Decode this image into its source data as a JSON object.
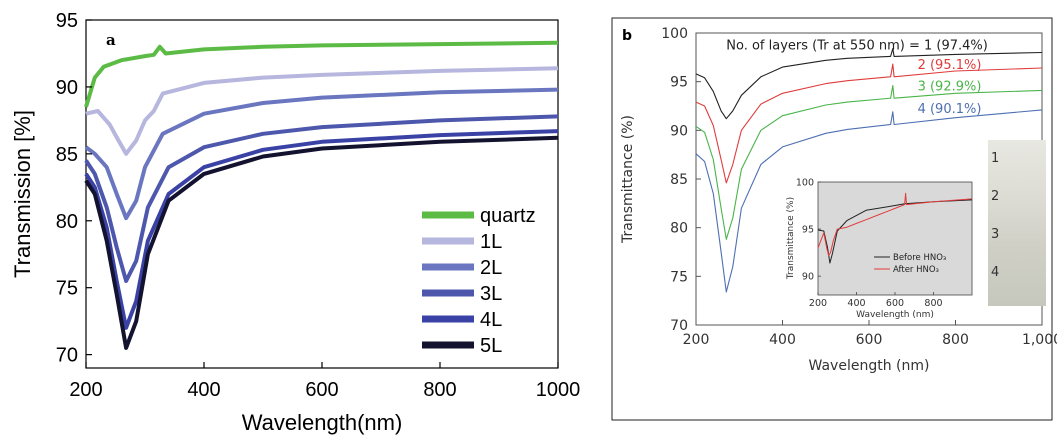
{
  "colors": {
    "quartz": "#5cbb45",
    "1L": "#b6b6de",
    "2L": "#6a76c0",
    "3L": "#4d58ad",
    "4L": "#3a42a6",
    "5L": "#13122f",
    "b1": "#222222",
    "b2": "#e03c3c",
    "b3": "#49b449",
    "b4": "#4d6fb2",
    "inset_bg": "#d9d9d9"
  },
  "chart_data": [
    {
      "type": "line",
      "panel_label": "a",
      "xlabel": "Wavelength(nm)",
      "ylabel": "Transmission [%]",
      "xlim": [
        200,
        1000
      ],
      "ylim": [
        69,
        95
      ],
      "xticks": [
        "200",
        "400",
        "600",
        "800",
        "1000"
      ],
      "xtick_values": [
        200,
        400,
        600,
        800,
        1000
      ],
      "yticks": [
        "70",
        "75",
        "80",
        "85",
        "90",
        "95"
      ],
      "ytick_values": [
        70,
        75,
        80,
        85,
        90,
        95
      ],
      "legend_position": "bottom-right",
      "series": [
        {
          "name": "quartz",
          "color_key": "quartz",
          "points": [
            [
              200,
              88.5
            ],
            [
              215,
              90.7
            ],
            [
              230,
              91.5
            ],
            [
              260,
              92.0
            ],
            [
              300,
              92.3
            ],
            [
              315,
              92.4
            ],
            [
              325,
              93.0
            ],
            [
              335,
              92.5
            ],
            [
              400,
              92.8
            ],
            [
              500,
              93.0
            ],
            [
              600,
              93.1
            ],
            [
              800,
              93.2
            ],
            [
              1000,
              93.3
            ]
          ]
        },
        {
          "name": "1L",
          "color_key": "1L",
          "points": [
            [
              200,
              88.0
            ],
            [
              220,
              88.2
            ],
            [
              240,
              87.2
            ],
            [
              255,
              86.0
            ],
            [
              268,
              85.0
            ],
            [
              285,
              86.0
            ],
            [
              300,
              87.5
            ],
            [
              315,
              88.2
            ],
            [
              330,
              89.5
            ],
            [
              400,
              90.3
            ],
            [
              500,
              90.7
            ],
            [
              600,
              90.9
            ],
            [
              800,
              91.2
            ],
            [
              1000,
              91.4
            ]
          ]
        },
        {
          "name": "2L",
          "color_key": "2L",
          "points": [
            [
              200,
              85.5
            ],
            [
              215,
              85.0
            ],
            [
              235,
              84.0
            ],
            [
              252,
              82.0
            ],
            [
              268,
              80.2
            ],
            [
              285,
              81.5
            ],
            [
              300,
              84.0
            ],
            [
              330,
              86.5
            ],
            [
              400,
              88.0
            ],
            [
              500,
              88.8
            ],
            [
              600,
              89.2
            ],
            [
              800,
              89.6
            ],
            [
              1000,
              89.8
            ]
          ]
        },
        {
          "name": "3L",
          "color_key": "3L",
          "points": [
            [
              200,
              84.5
            ],
            [
              215,
              83.5
            ],
            [
              235,
              81.0
            ],
            [
              252,
              78.0
            ],
            [
              268,
              75.5
            ],
            [
              285,
              77.0
            ],
            [
              305,
              81.0
            ],
            [
              340,
              84.0
            ],
            [
              400,
              85.5
            ],
            [
              500,
              86.5
            ],
            [
              600,
              87.0
            ],
            [
              800,
              87.5
            ],
            [
              1000,
              87.8
            ]
          ]
        },
        {
          "name": "4L",
          "color_key": "4L",
          "points": [
            [
              200,
              83.5
            ],
            [
              215,
              82.5
            ],
            [
              235,
              79.5
            ],
            [
              252,
              75.5
            ],
            [
              268,
              72.0
            ],
            [
              285,
              74.0
            ],
            [
              305,
              78.5
            ],
            [
              340,
              82.0
            ],
            [
              400,
              84.0
            ],
            [
              500,
              85.3
            ],
            [
              600,
              85.9
            ],
            [
              800,
              86.4
            ],
            [
              1000,
              86.7
            ]
          ]
        },
        {
          "name": "5L",
          "color_key": "5L",
          "points": [
            [
              200,
              83.0
            ],
            [
              215,
              82.0
            ],
            [
              235,
              78.5
            ],
            [
              252,
              74.5
            ],
            [
              268,
              70.5
            ],
            [
              285,
              72.5
            ],
            [
              305,
              77.5
            ],
            [
              340,
              81.5
            ],
            [
              400,
              83.5
            ],
            [
              500,
              84.8
            ],
            [
              600,
              85.4
            ],
            [
              800,
              85.9
            ],
            [
              1000,
              86.2
            ]
          ]
        }
      ]
    },
    {
      "type": "line",
      "panel_label": "b",
      "xlabel": "Wavelength (nm)",
      "ylabel": "Transmittance (%)",
      "xlim": [
        200,
        1000
      ],
      "ylim": [
        70,
        100
      ],
      "xticks": [
        "200",
        "400",
        "600",
        "800",
        "1,000"
      ],
      "xtick_values": [
        200,
        400,
        600,
        800,
        1000
      ],
      "yticks": [
        "70",
        "75",
        "80",
        "85",
        "90",
        "95",
        "100"
      ],
      "ytick_values": [
        70,
        75,
        80,
        85,
        90,
        95,
        100
      ],
      "annotations": [
        {
          "text": "No. of layers (Tr at 550 nm) = 1 (97.4%)",
          "color_key": "b1",
          "x": 270,
          "y": 98.3
        },
        {
          "text": "2 (95.1%)",
          "color_key": "b2",
          "x": 860,
          "y": 96.3
        },
        {
          "text": "3 (92.9%)",
          "color_key": "b3",
          "x": 860,
          "y": 94.1
        },
        {
          "text": "4 (90.1%)",
          "color_key": "b4",
          "x": 860,
          "y": 91.8
        }
      ],
      "series": [
        {
          "name": "1",
          "color_key": "b1",
          "points": [
            [
              200,
              95.8
            ],
            [
              220,
              95.4
            ],
            [
              240,
              94.0
            ],
            [
              258,
              92.0
            ],
            [
              270,
              91.2
            ],
            [
              285,
              92.0
            ],
            [
              305,
              93.6
            ],
            [
              350,
              95.5
            ],
            [
              400,
              96.5
            ],
            [
              500,
              97.2
            ],
            [
              550,
              97.4
            ],
            [
              650,
              97.6
            ],
            [
              655,
              98.4
            ],
            [
              658,
              97.6
            ],
            [
              800,
              97.8
            ],
            [
              1000,
              98.0
            ]
          ]
        },
        {
          "name": "2",
          "color_key": "b2",
          "points": [
            [
              200,
              92.9
            ],
            [
              220,
              92.5
            ],
            [
              240,
              90.5
            ],
            [
              258,
              87.0
            ],
            [
              270,
              84.6
            ],
            [
              285,
              86.5
            ],
            [
              305,
              90.0
            ],
            [
              350,
              92.7
            ],
            [
              400,
              93.8
            ],
            [
              500,
              94.8
            ],
            [
              550,
              95.1
            ],
            [
              650,
              95.5
            ],
            [
              655,
              96.8
            ],
            [
              658,
              95.5
            ],
            [
              800,
              96.1
            ],
            [
              1000,
              96.4
            ]
          ]
        },
        {
          "name": "3",
          "color_key": "b3",
          "points": [
            [
              200,
              90.4
            ],
            [
              220,
              89.8
            ],
            [
              240,
              87.0
            ],
            [
              258,
              82.0
            ],
            [
              270,
              78.8
            ],
            [
              285,
              81.0
            ],
            [
              305,
              86.0
            ],
            [
              350,
              90.0
            ],
            [
              400,
              91.5
            ],
            [
              500,
              92.6
            ],
            [
              550,
              92.9
            ],
            [
              650,
              93.3
            ],
            [
              655,
              94.6
            ],
            [
              658,
              93.3
            ],
            [
              800,
              93.8
            ],
            [
              1000,
              94.1
            ]
          ]
        },
        {
          "name": "4",
          "color_key": "b4",
          "points": [
            [
              200,
              87.6
            ],
            [
              220,
              86.8
            ],
            [
              240,
              83.5
            ],
            [
              258,
              77.5
            ],
            [
              270,
              73.4
            ],
            [
              285,
              76.0
            ],
            [
              305,
              82.0
            ],
            [
              350,
              86.5
            ],
            [
              400,
              88.3
            ],
            [
              500,
              89.7
            ],
            [
              550,
              90.1
            ],
            [
              650,
              90.6
            ],
            [
              655,
              91.9
            ],
            [
              658,
              90.6
            ],
            [
              800,
              91.3
            ],
            [
              1000,
              92.1
            ]
          ]
        }
      ],
      "inset": {
        "type": "line",
        "xlabel": "Wavelength (nm)",
        "ylabel": "Transmittance (%)",
        "xlim": [
          200,
          1000
        ],
        "ylim": [
          88,
          100
        ],
        "xticks": [
          "200",
          "400",
          "600",
          "800"
        ],
        "xtick_values": [
          200,
          400,
          600,
          800
        ],
        "yticks": [
          "90",
          "95",
          "100"
        ],
        "ytick_values": [
          90,
          95,
          100
        ],
        "legend_position": "center-right",
        "series": [
          {
            "name": "Before HNO₃",
            "color_key": "b1",
            "points": [
              [
                200,
                94.9
              ],
              [
                230,
                94.8
              ],
              [
                250,
                93.0
              ],
              [
                262,
                91.4
              ],
              [
                275,
                92.4
              ],
              [
                300,
                94.8
              ],
              [
                350,
                95.9
              ],
              [
                450,
                97.0
              ],
              [
                600,
                97.5
              ],
              [
                650,
                97.7
              ],
              [
                800,
                97.9
              ],
              [
                1000,
                98.1
              ]
            ]
          },
          {
            "name": "After HNO₃",
            "color_key": "b2",
            "points": [
              [
                200,
                93.0
              ],
              [
                230,
                94.6
              ],
              [
                245,
                93.0
              ],
              [
                255,
                92.2
              ],
              [
                265,
                92.5
              ],
              [
                280,
                93.8
              ],
              [
                300,
                95.0
              ],
              [
                350,
                95.2
              ],
              [
                400,
                95.6
              ],
              [
                450,
                96.0
              ],
              [
                500,
                96.4
              ],
              [
                600,
                97.2
              ],
              [
                650,
                97.6
              ],
              [
                655,
                98.8
              ],
              [
                660,
                97.6
              ],
              [
                800,
                97.9
              ],
              [
                1000,
                98.2
              ]
            ]
          }
        ]
      },
      "photo_labels": [
        "1",
        "2",
        "3",
        "4"
      ]
    }
  ]
}
